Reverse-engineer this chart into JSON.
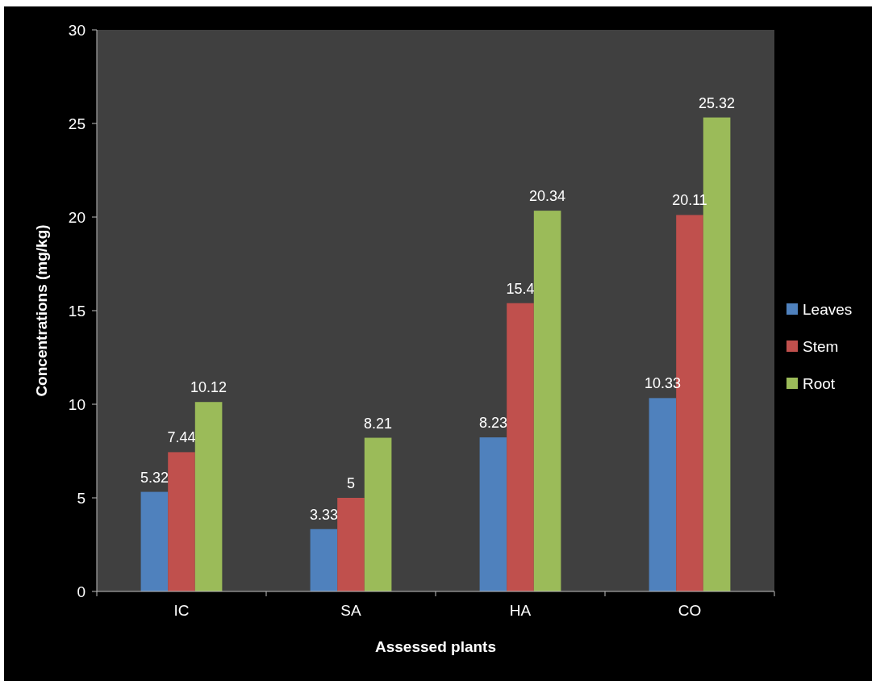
{
  "chart_data": {
    "type": "bar",
    "xlabel": "Assessed plants",
    "ylabel": "Concentrations (mg/kg)",
    "categories": [
      "IC",
      "SA",
      "HA",
      "CO"
    ],
    "series": [
      {
        "name": "Leaves",
        "color": "#4f81bd",
        "values": [
          5.32,
          3.33,
          8.23,
          10.33
        ]
      },
      {
        "name": "Stem",
        "color": "#c0504d",
        "values": [
          7.44,
          5,
          15.4,
          20.11
        ]
      },
      {
        "name": "Root",
        "color": "#9bbb59",
        "values": [
          10.12,
          8.21,
          20.34,
          25.32
        ]
      }
    ],
    "ylim": [
      0,
      30
    ],
    "yticks": [
      0,
      5,
      10,
      15,
      20,
      25,
      30
    ],
    "grid": false,
    "legend": "right",
    "data_labels": true
  }
}
